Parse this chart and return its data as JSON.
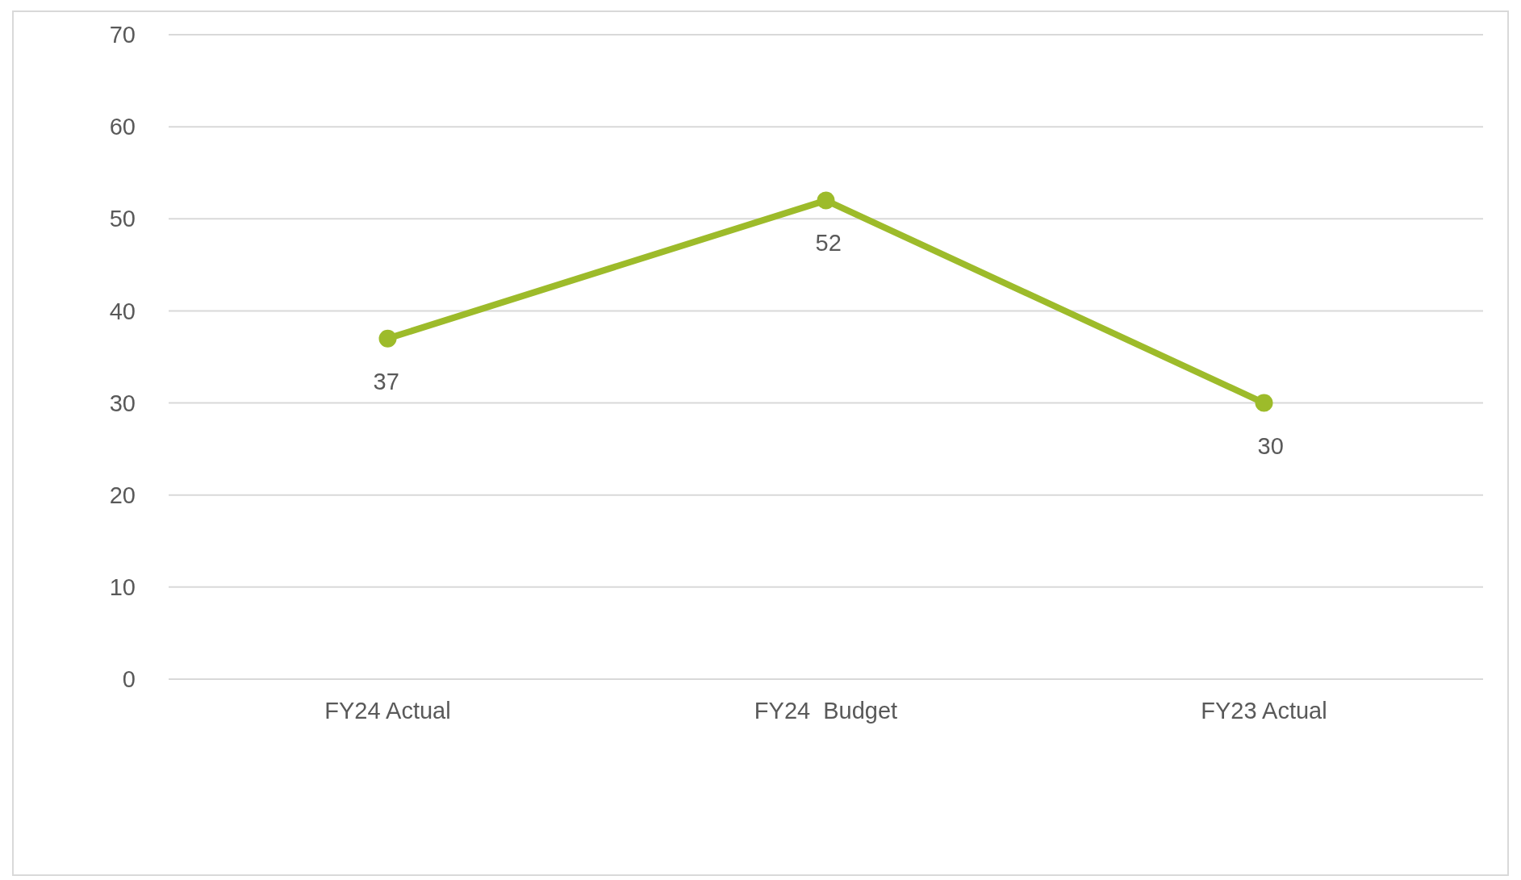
{
  "chart_data": {
    "type": "line",
    "categories": [
      "FY24 Actual",
      "FY24  Budget",
      "FY23 Actual"
    ],
    "series": [
      {
        "color": "#9dbb2a",
        "values": [
          37,
          52,
          30
        ]
      }
    ],
    "ylim": [
      0,
      70
    ],
    "yticks": [
      0,
      10,
      20,
      30,
      40,
      50,
      60,
      70
    ],
    "grid": "y",
    "marker": "circle",
    "data_labels": true
  }
}
